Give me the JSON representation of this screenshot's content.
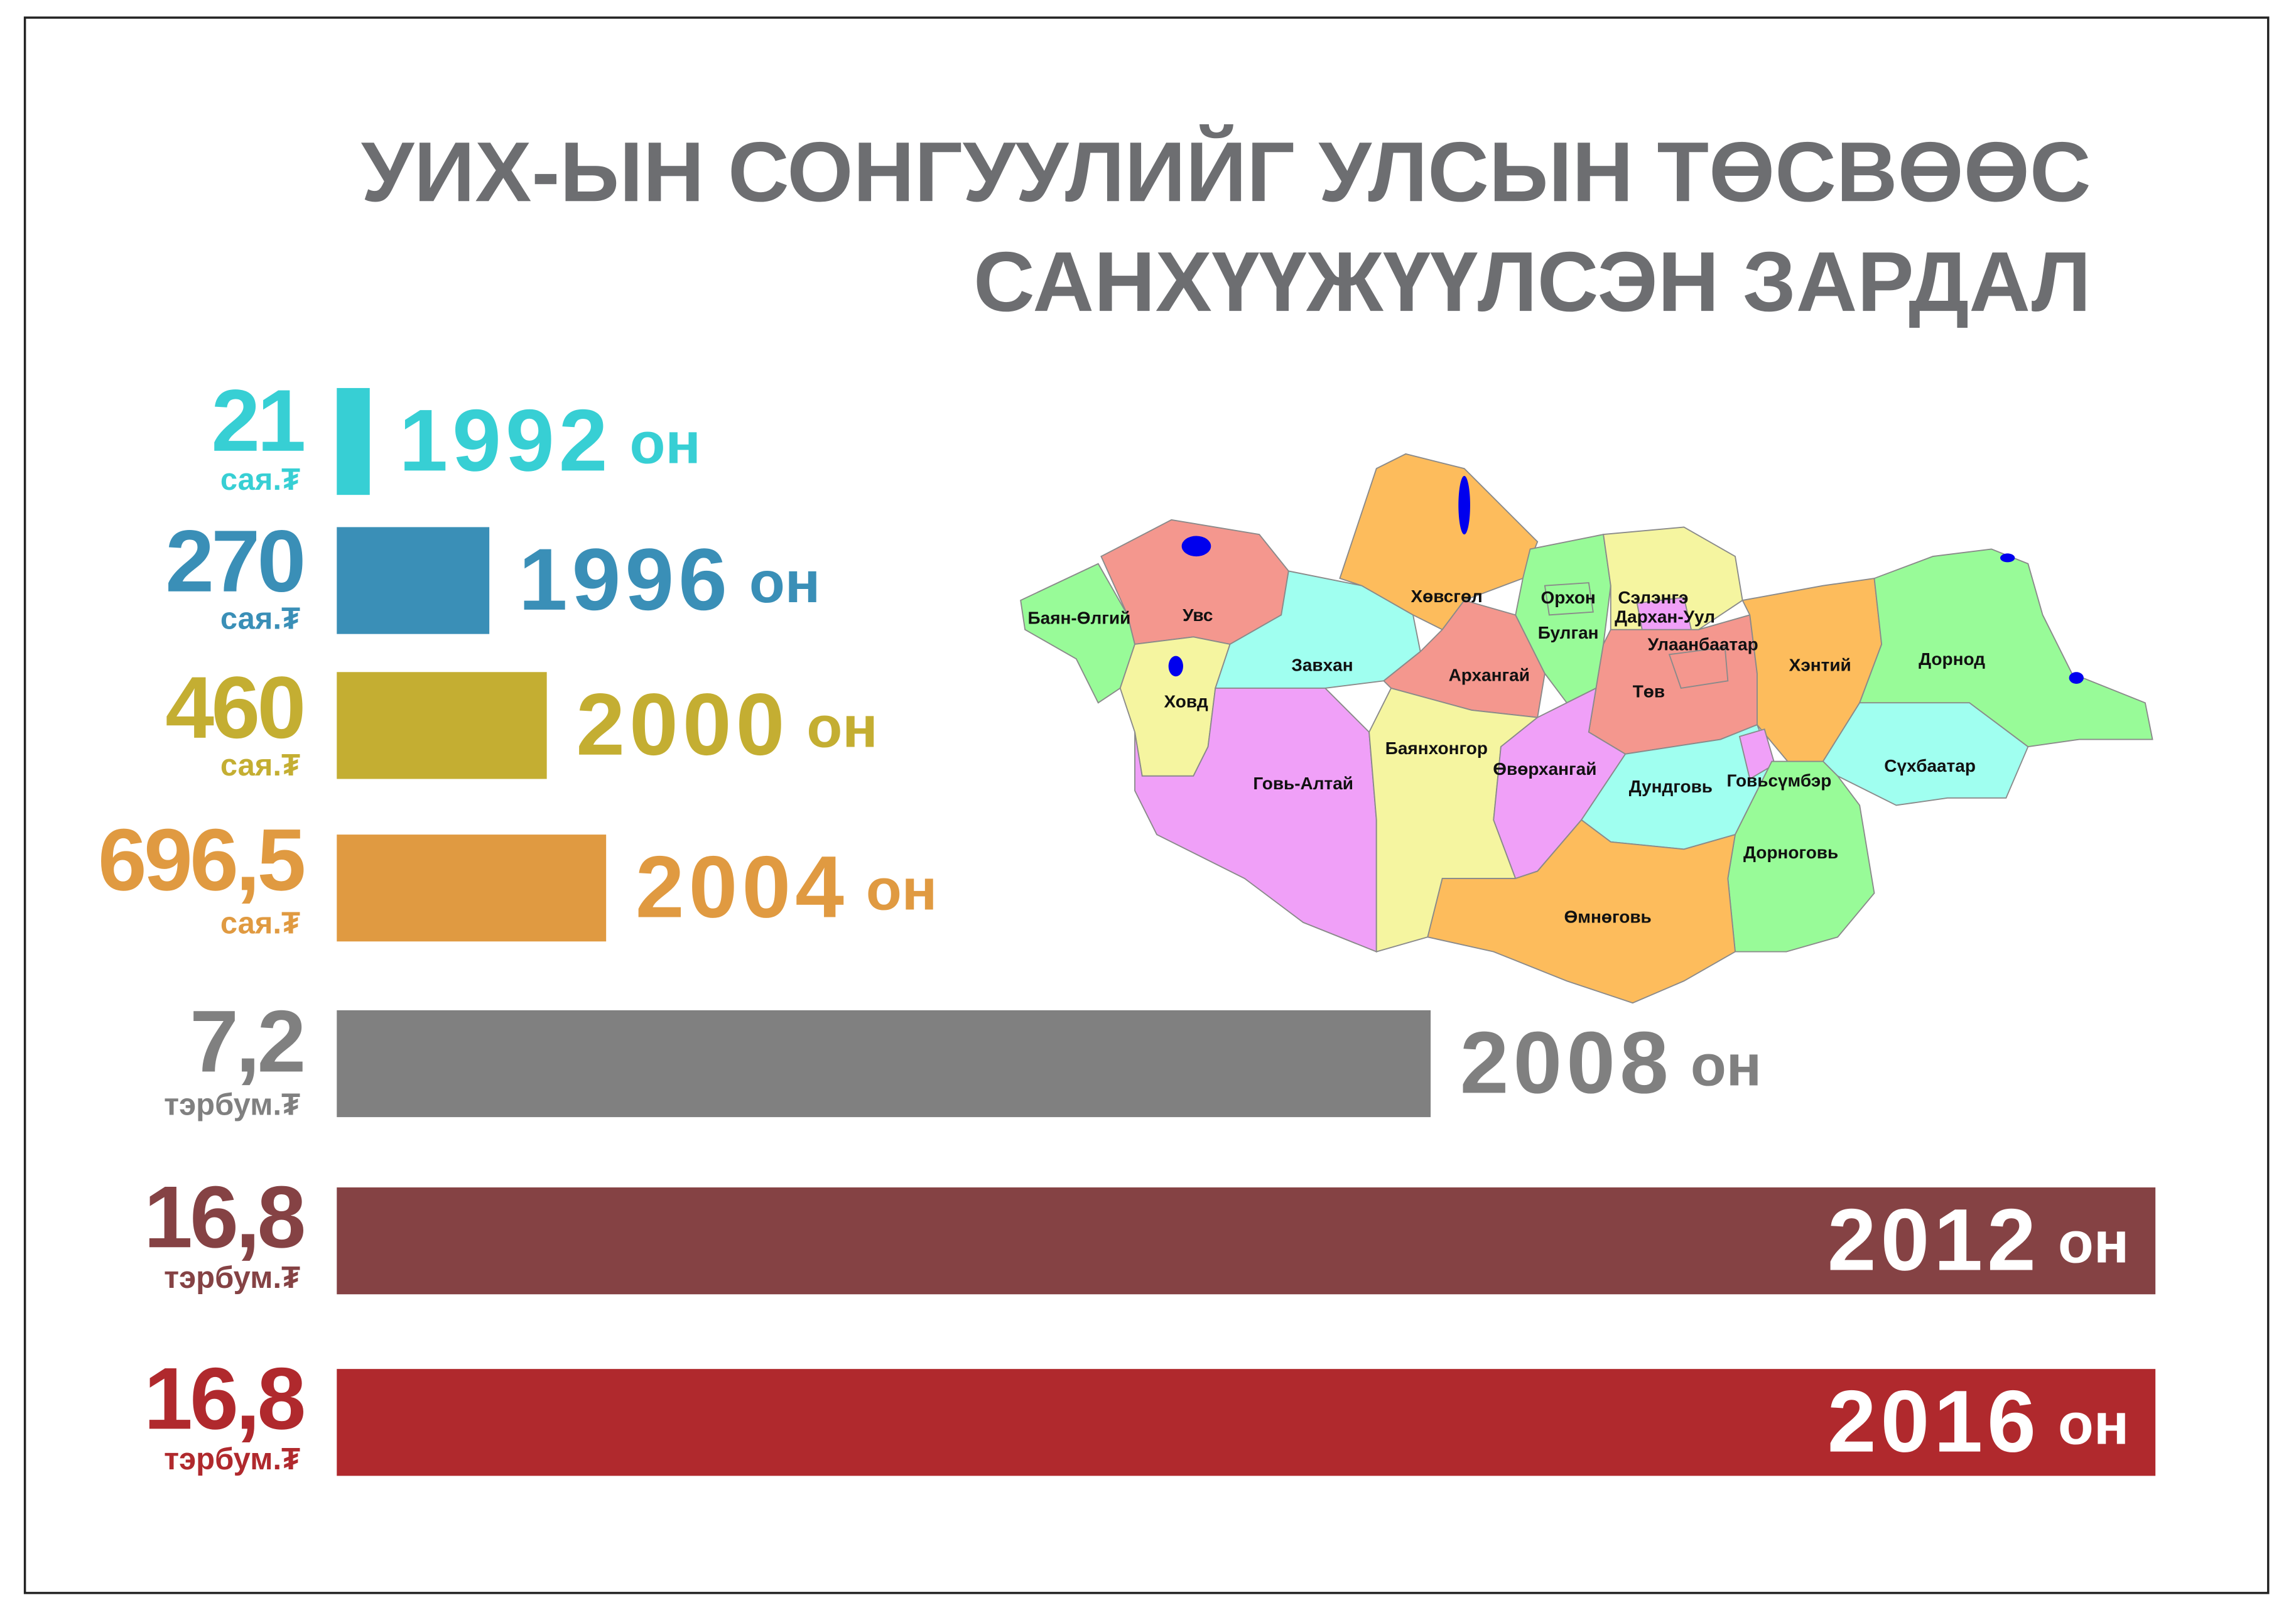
{
  "chart_data": {
    "type": "bar",
    "title": [
      "УИХ-ЫН СОНГУУЛИЙГ УЛСЫН ТӨСВӨӨС",
      "САНХҮҮЖҮҮЛСЭН ЗАРДАЛ"
    ],
    "categories": [
      "1992",
      "1996",
      "2000",
      "2004",
      "2008",
      "2012",
      "2016"
    ],
    "category_suffix": "он",
    "values": [
      21,
      270,
      460,
      696.5,
      7.2,
      16.8,
      16.8
    ],
    "value_labels": [
      "21",
      "270",
      "460",
      "696,5",
      "7,2",
      "16,8",
      "16,8"
    ],
    "units": [
      "сая.₮",
      "сая.₮",
      "сая.₮",
      "сая.₮",
      "тэрбум.₮",
      "тэрбум.₮",
      "тэрбум.₮"
    ],
    "colors": [
      "#37cfd4",
      "#3a8fb7",
      "#c4ae32",
      "#e09a41",
      "#808080",
      "#854244",
      "#b0292d"
    ]
  },
  "map": {
    "regions": [
      {
        "name": "Баян-Өлгий",
        "color": "#98fb98"
      },
      {
        "name": "Увс",
        "color": "#f4978e"
      },
      {
        "name": "Ховд",
        "color": "#f5f5a0"
      },
      {
        "name": "Завхан",
        "color": "#a0fff0"
      },
      {
        "name": "Хөвсгөл",
        "color": "#fdbc5c"
      },
      {
        "name": "Архангай",
        "color": "#f4978e"
      },
      {
        "name": "Булган",
        "color": "#98fb98"
      },
      {
        "name": "Орхон",
        "color": "#98fb98"
      },
      {
        "name": "Сэлэнгэ",
        "color": "#f5f5a0"
      },
      {
        "name": "Дархан-Уул",
        "color": "#f0a0f8"
      },
      {
        "name": "Төв",
        "color": "#f4978e"
      },
      {
        "name": "Улаанбаатар",
        "color": "#f4978e"
      },
      {
        "name": "Хэнтий",
        "color": "#fdbc5c"
      },
      {
        "name": "Дорнод",
        "color": "#98fb98"
      },
      {
        "name": "Сүхбаатар",
        "color": "#a0fff0"
      },
      {
        "name": "Говь-Алтай",
        "color": "#f0a0f8"
      },
      {
        "name": "Баянхонгор",
        "color": "#f5f5a0"
      },
      {
        "name": "Өвөрхангай",
        "color": "#f0a0f8"
      },
      {
        "name": "Дундговь",
        "color": "#a0fff0"
      },
      {
        "name": "Говьсүмбэр",
        "color": "#f0a0f8"
      },
      {
        "name": "Дорноговь",
        "color": "#98fb98"
      },
      {
        "name": "Өмнөговь",
        "color": "#fdbc5c"
      }
    ]
  }
}
